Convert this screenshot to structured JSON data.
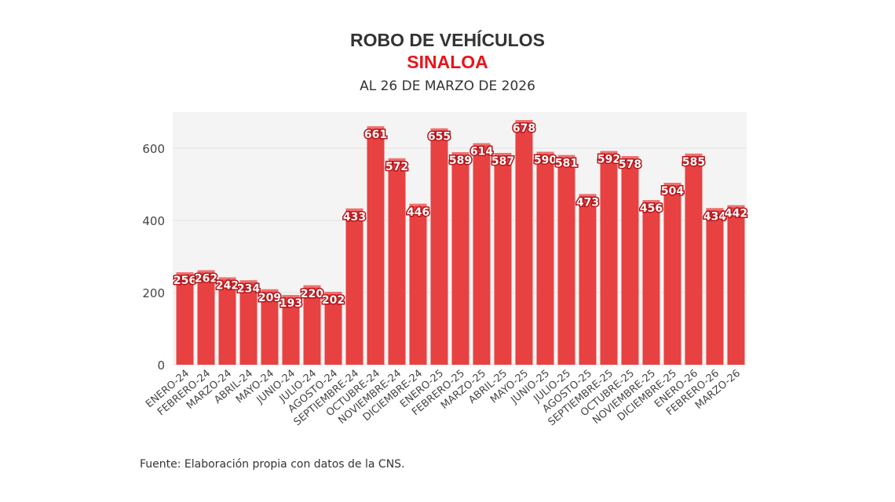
{
  "chart_data": {
    "type": "bar",
    "title": "ROBO DE VEHÍCULOS",
    "subtitle": "SINALOA",
    "date_note": "AL 26 DE MARZO DE 2026",
    "source": "Fuente: Elaboración propia con datos de la CNS.",
    "categories": [
      "ENERO-24",
      "FEBRERO-24",
      "MARZO-24",
      "ABRIL-24",
      "MAYO-24",
      "JUNIO-24",
      "JULIO-24",
      "AGOSTO-24",
      "SEPTIEMBRE-24",
      "OCTUBRE-24",
      "NOVIEMBRE-24",
      "DICIEMBRE-24",
      "ENERO-25",
      "FEBRERO-25",
      "MARZO-25",
      "ABRIL-25",
      "MAYO-25",
      "JUNIO-25",
      "JULIO-25",
      "AGOSTO-25",
      "SEPTIEMBRE-25",
      "OCTUBRE-25",
      "NOVIEMBRE-25",
      "DICIEMBRE-25",
      "ENERO-26",
      "FEBRERO-26",
      "MARZO-26"
    ],
    "values": [
      256,
      262,
      242,
      234,
      209,
      193,
      220,
      202,
      433,
      661,
      572,
      446,
      655,
      589,
      614,
      587,
      678,
      590,
      581,
      473,
      592,
      578,
      456,
      504,
      585,
      434,
      442
    ],
    "yticks": [
      0,
      200,
      400,
      600
    ],
    "ylim": [
      0,
      700
    ],
    "grid": true,
    "legend": "none",
    "colors": {
      "bar": "#e84142",
      "bar_top": "#f07070",
      "label_stroke": "#b5151a",
      "plot_bg": "#f4f4f4",
      "subtitle": "#e8141b"
    }
  }
}
